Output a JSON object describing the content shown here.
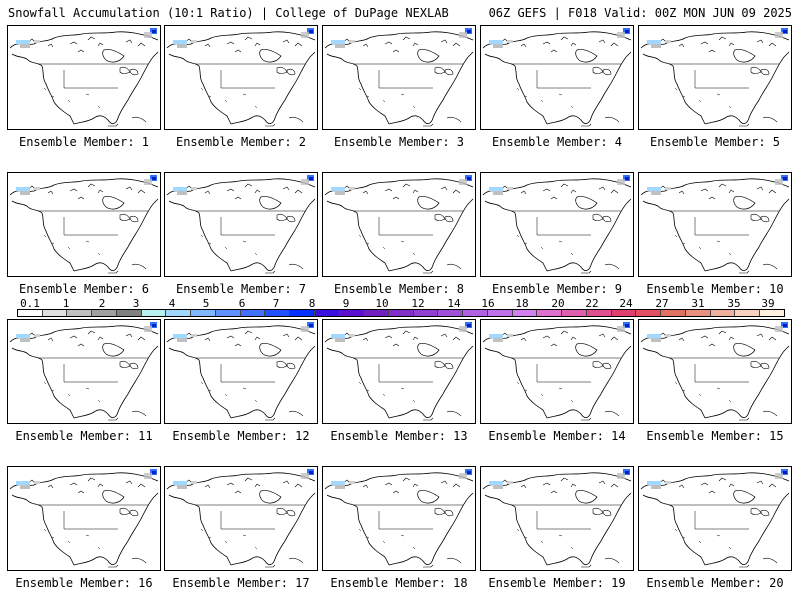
{
  "header": {
    "title_left": "Snowfall Accumulation (10:1 Ratio) | College of DuPage NEXLAB",
    "title_right": "06Z GEFS | F018 Valid: 00Z MON JUN 09 2025"
  },
  "panels": [
    {
      "label": "Ensemble Member: 1"
    },
    {
      "label": "Ensemble Member: 2"
    },
    {
      "label": "Ensemble Member: 3"
    },
    {
      "label": "Ensemble Member: 4"
    },
    {
      "label": "Ensemble Member: 5"
    },
    {
      "label": "Ensemble Member: 6"
    },
    {
      "label": "Ensemble Member: 7"
    },
    {
      "label": "Ensemble Member: 8"
    },
    {
      "label": "Ensemble Member: 9"
    },
    {
      "label": "Ensemble Member: 10"
    },
    {
      "label": "Ensemble Member: 11"
    },
    {
      "label": "Ensemble Member: 12"
    },
    {
      "label": "Ensemble Member: 13"
    },
    {
      "label": "Ensemble Member: 14"
    },
    {
      "label": "Ensemble Member: 15"
    },
    {
      "label": "Ensemble Member: 16"
    },
    {
      "label": "Ensemble Member: 17"
    },
    {
      "label": "Ensemble Member: 18"
    },
    {
      "label": "Ensemble Member: 19"
    },
    {
      "label": "Ensemble Member: 20"
    }
  ],
  "colorbar": {
    "labels": [
      "0.1",
      "1",
      "2",
      "3",
      "4",
      "5",
      "6",
      "7",
      "8",
      "9",
      "10",
      "12",
      "14",
      "16",
      "18",
      "20",
      "22",
      "24",
      "27",
      "31",
      "35",
      "39"
    ],
    "colors": [
      "#ffffff",
      "#e0e0e0",
      "#c0c0c0",
      "#a0a0a0",
      "#808080",
      "#b8f0f0",
      "#a0d8ff",
      "#80b8ff",
      "#6090ff",
      "#4070ff",
      "#2050ff",
      "#0030ff",
      "#3a10e0",
      "#5a10d0",
      "#7020c0",
      "#8030c8",
      "#9040d0",
      "#a050d8",
      "#b060e0",
      "#c070e8",
      "#d080f0",
      "#e070d0",
      "#e060b0",
      "#e05090",
      "#e04070",
      "#e05060",
      "#e07060",
      "#e89080",
      "#f0b0a0",
      "#f8d0c0",
      "#fff0e0"
    ]
  }
}
